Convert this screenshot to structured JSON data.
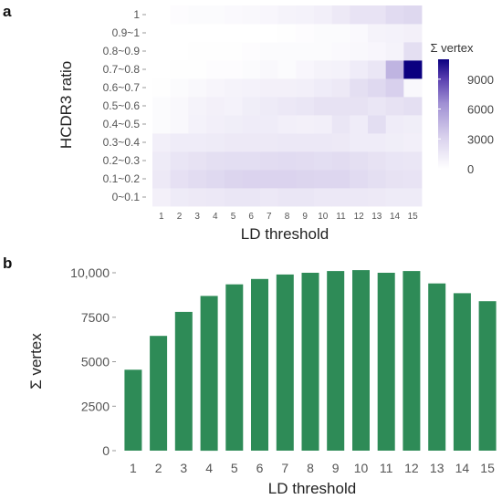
{
  "figure": {
    "panel_a_label": "a",
    "panel_b_label": "b"
  },
  "colors": {
    "heat_low": "#ffffff",
    "heat_high": "#0b0080",
    "bar_fill": "#2e8b57"
  },
  "chart_data": [
    {
      "type": "heatmap",
      "xlabel": "LD threshold",
      "ylabel": "HCDR3 ratio",
      "x_categories": [
        "1",
        "2",
        "3",
        "4",
        "5",
        "6",
        "7",
        "8",
        "9",
        "10",
        "11",
        "12",
        "13",
        "14",
        "15"
      ],
      "y_categories": [
        "0~0.1",
        "0.1~0.2",
        "0.2~0.3",
        "0.3~0.4",
        "0.4~0.5",
        "0.5~0.6",
        "0.6~0.7",
        "0.7~0.8",
        "0.8~0.9",
        "0.9~1",
        "1"
      ],
      "values": [
        [
          1000,
          1400,
          1500,
          1600,
          1700,
          1700,
          1600,
          1700,
          1700,
          1600,
          1600,
          1600,
          1500,
          1400,
          1400
        ],
        [
          1500,
          2100,
          2400,
          2600,
          2900,
          3000,
          3000,
          3000,
          2900,
          2800,
          2800,
          2500,
          2200,
          2000,
          1900
        ],
        [
          1400,
          1800,
          2000,
          2200,
          2300,
          2300,
          2400,
          2500,
          2400,
          2300,
          2400,
          2200,
          2000,
          1800,
          1700
        ],
        [
          1100,
          1300,
          1300,
          1400,
          1500,
          1500,
          1500,
          1600,
          1600,
          1600,
          1500,
          1300,
          1300,
          1200,
          1100
        ],
        [
          300,
          500,
          900,
          1100,
          1200,
          1300,
          1300,
          1100,
          1000,
          1100,
          1700,
          1300,
          2300,
          1300,
          1200
        ],
        [
          300,
          500,
          800,
          1000,
          900,
          1200,
          1400,
          1600,
          1700,
          2000,
          2000,
          2000,
          1700,
          2000,
          2200
        ],
        [
          100,
          300,
          500,
          700,
          800,
          900,
          1000,
          1000,
          1100,
          1300,
          1500,
          2200,
          2600,
          3200,
          500
        ],
        [
          0,
          100,
          100,
          200,
          200,
          300,
          500,
          300,
          600,
          800,
          900,
          1300,
          1700,
          4700,
          11000
        ],
        [
          0,
          0,
          100,
          100,
          100,
          200,
          300,
          300,
          300,
          300,
          400,
          500,
          600,
          800,
          2200
        ],
        [
          0,
          0,
          0,
          0,
          0,
          0,
          0,
          100,
          200,
          300,
          300,
          400,
          800,
          900,
          1000
        ],
        [
          0,
          200,
          300,
          300,
          400,
          500,
          600,
          800,
          900,
          1100,
          1500,
          1900,
          1900,
          2500,
          2700
        ]
      ],
      "legend": {
        "title": "Σ vertex",
        "ticks": [
          "9000",
          "6000",
          "3000",
          "0"
        ],
        "tick_values": [
          9000,
          6000,
          3000,
          0
        ],
        "range": [
          0,
          11000
        ]
      }
    },
    {
      "type": "bar",
      "xlabel": "LD threshold",
      "ylabel": "Σ vertex",
      "categories": [
        "1",
        "2",
        "3",
        "4",
        "5",
        "6",
        "7",
        "8",
        "9",
        "10",
        "11",
        "12",
        "13",
        "14",
        "15"
      ],
      "values": [
        4550,
        6450,
        7800,
        8700,
        9350,
        9650,
        9900,
        10000,
        10100,
        10150,
        10000,
        10100,
        9400,
        8850,
        8400
      ],
      "ylim": [
        0,
        10300
      ],
      "y_ticks": [
        "0",
        "2500",
        "5000",
        "7500",
        "10,000"
      ],
      "y_tick_values": [
        0,
        2500,
        5000,
        7500,
        10000
      ]
    }
  ]
}
